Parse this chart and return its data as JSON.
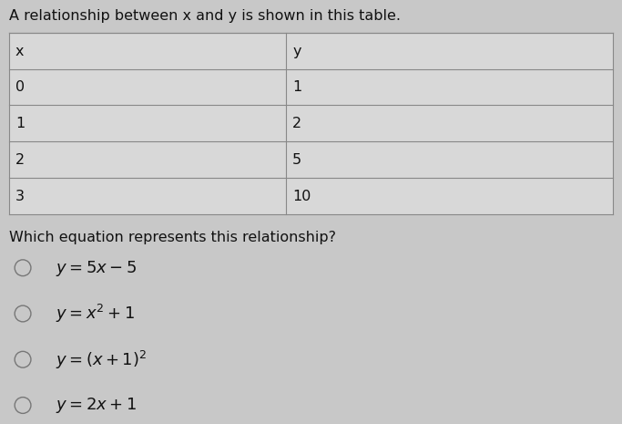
{
  "title": "A relationship between x and y is shown in this table.",
  "table_headers": [
    "x",
    "y"
  ],
  "table_data": [
    [
      "0",
      "1"
    ],
    [
      "1",
      "2"
    ],
    [
      "2",
      "5"
    ],
    [
      "3",
      "10"
    ]
  ],
  "question": "Which equation represents this relationship?",
  "options_math": [
    "$y=5x-5$",
    "$y=x^2+1$",
    "$y=(x+1)^2$",
    "$y=2x+1$"
  ],
  "bg_color": "#c8c8c8",
  "table_bg": "#d8d8d8",
  "table_line_color": "#888888",
  "text_color": "#111111",
  "title_fontsize": 11.5,
  "table_fontsize": 11.5,
  "question_fontsize": 11.5,
  "option_fontsize": 13
}
